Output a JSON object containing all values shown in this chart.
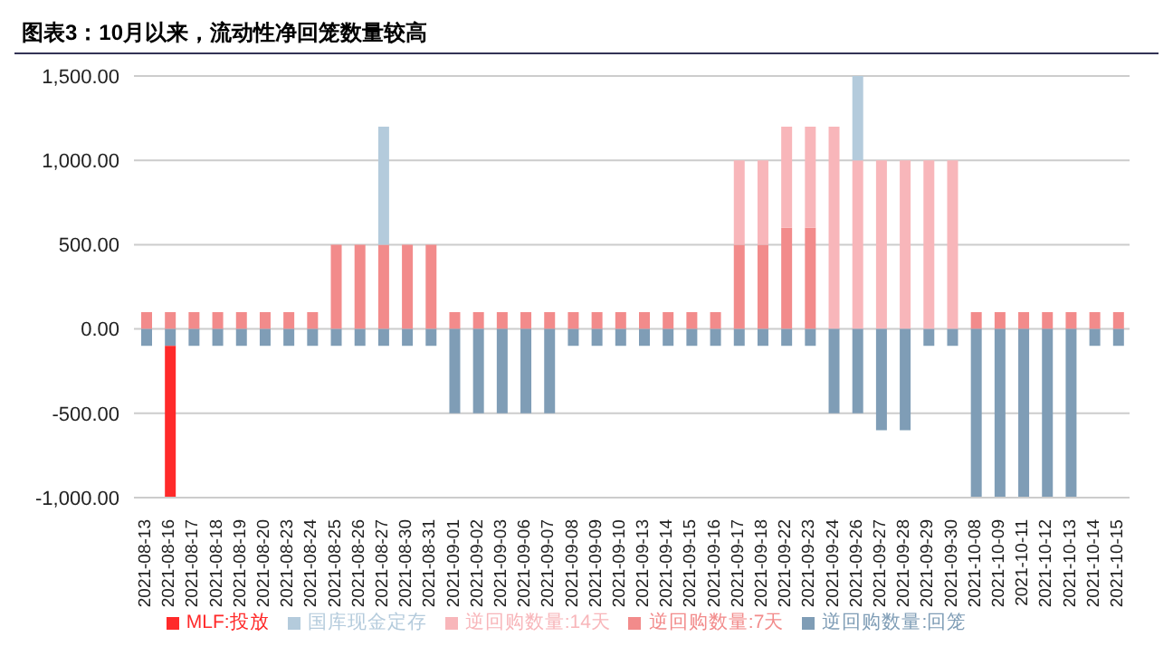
{
  "chart_data": {
    "type": "bar",
    "stacked": true,
    "title": "图表3：10月以来，流动性净回笼数量较高",
    "categories": [
      "2021-08-13",
      "2021-08-16",
      "2021-08-17",
      "2021-08-18",
      "2021-08-19",
      "2021-08-20",
      "2021-08-23",
      "2021-08-24",
      "2021-08-25",
      "2021-08-26",
      "2021-08-27",
      "2021-08-30",
      "2021-08-31",
      "2021-09-01",
      "2021-09-02",
      "2021-09-03",
      "2021-09-06",
      "2021-09-07",
      "2021-09-08",
      "2021-09-09",
      "2021-09-10",
      "2021-09-13",
      "2021-09-14",
      "2021-09-15",
      "2021-09-16",
      "2021-09-17",
      "2021-09-18",
      "2021-09-22",
      "2021-09-23",
      "2021-09-24",
      "2021-09-26",
      "2021-09-27",
      "2021-09-28",
      "2021-09-29",
      "2021-09-30",
      "2021-10-08",
      "2021-10-09",
      "2021-10-11",
      "2021-10-12",
      "2021-10-13",
      "2021-10-14",
      "2021-10-15"
    ],
    "series": [
      {
        "name": "逆回购数量:7天",
        "color": "#f28b8b",
        "values": [
          100,
          100,
          100,
          100,
          100,
          100,
          100,
          100,
          500,
          500,
          500,
          500,
          500,
          100,
          100,
          100,
          100,
          100,
          100,
          100,
          100,
          100,
          100,
          100,
          100,
          500,
          500,
          600,
          600,
          0,
          0,
          0,
          0,
          0,
          0,
          100,
          100,
          100,
          100,
          100,
          100,
          100
        ]
      },
      {
        "name": "逆回购数量:14天",
        "color": "#f8b6ba",
        "values": [
          0,
          0,
          0,
          0,
          0,
          0,
          0,
          0,
          0,
          0,
          0,
          0,
          0,
          0,
          0,
          0,
          0,
          0,
          0,
          0,
          0,
          0,
          0,
          0,
          0,
          500,
          500,
          600,
          600,
          1200,
          1000,
          1000,
          1000,
          1000,
          1000,
          0,
          0,
          0,
          0,
          0,
          0,
          0
        ]
      },
      {
        "name": "逆回购数量:回笼",
        "color": "#7f9db6",
        "values": [
          -100,
          -100,
          -100,
          -100,
          -100,
          -100,
          -100,
          -100,
          -100,
          -100,
          -100,
          -100,
          -100,
          -500,
          -500,
          -500,
          -500,
          -500,
          -100,
          -100,
          -100,
          -100,
          -100,
          -100,
          -100,
          -100,
          -100,
          -100,
          -100,
          -500,
          -500,
          -600,
          -600,
          -100,
          -100,
          -1000,
          -1000,
          -1000,
          -1000,
          -1000,
          -100,
          -100
        ]
      },
      {
        "name": "国库现金定存",
        "color": "#b4cbdc",
        "values": [
          0,
          0,
          0,
          0,
          0,
          0,
          0,
          0,
          0,
          0,
          700,
          0,
          0,
          0,
          0,
          0,
          0,
          0,
          0,
          0,
          0,
          0,
          0,
          0,
          0,
          0,
          0,
          0,
          0,
          0,
          500,
          0,
          0,
          0,
          0,
          0,
          0,
          0,
          0,
          0,
          0,
          0
        ]
      },
      {
        "name": "MLF:投放",
        "color": "#ff2a2a",
        "values": [
          0,
          -900,
          0,
          0,
          0,
          0,
          0,
          0,
          0,
          0,
          0,
          0,
          0,
          0,
          0,
          0,
          0,
          0,
          0,
          0,
          0,
          0,
          0,
          0,
          0,
          0,
          0,
          0,
          0,
          0,
          0,
          0,
          0,
          0,
          0,
          0,
          0,
          0,
          0,
          0,
          0,
          0
        ]
      }
    ],
    "ylim": [
      -1000,
      1500
    ],
    "yticks": [
      {
        "value": -1000,
        "label": "-1,000.00"
      },
      {
        "value": -500,
        "label": "-500.00"
      },
      {
        "value": 0,
        "label": "0.00"
      },
      {
        "value": 500,
        "label": "500.00"
      },
      {
        "value": 1000,
        "label": "1,000.00"
      },
      {
        "value": 1500,
        "label": "1,500.00"
      }
    ],
    "grid": "y",
    "legend": "bottom"
  }
}
